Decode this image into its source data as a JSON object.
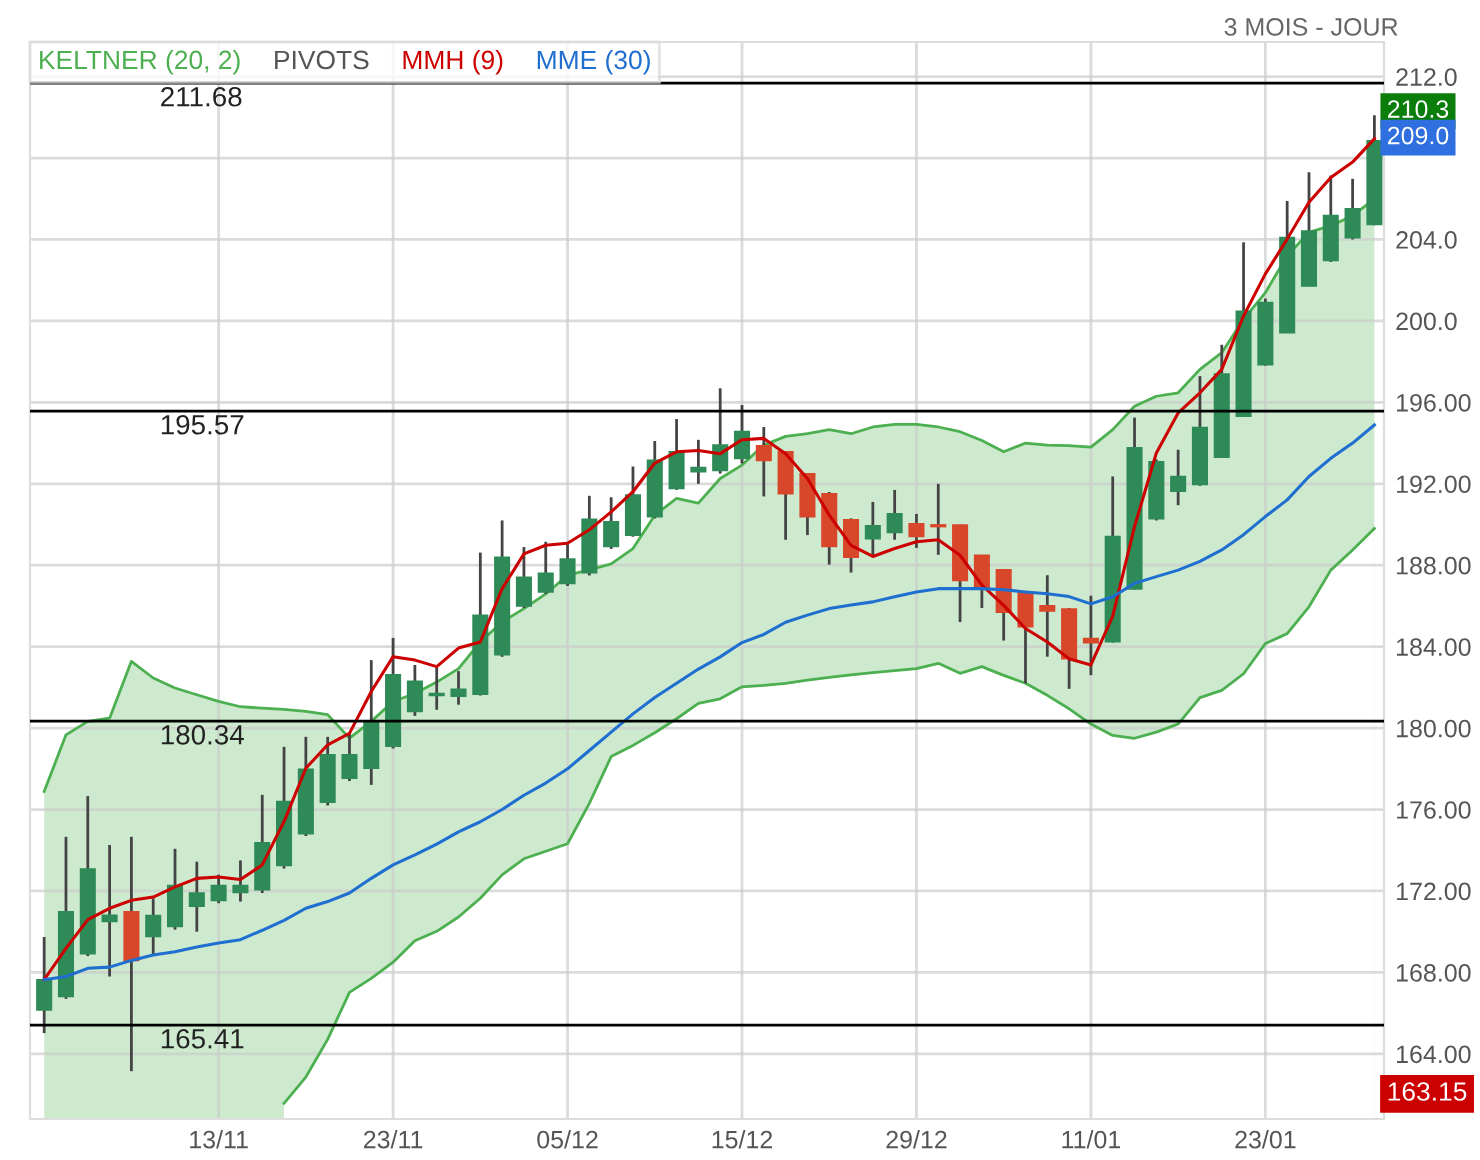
{
  "chart_data": {
    "type": "candlestick",
    "title": "3 MOIS - JOUR",
    "categories": [
      null,
      null,
      null,
      null,
      null,
      null,
      null,
      null,
      "13/11",
      null,
      null,
      null,
      null,
      null,
      null,
      null,
      "23/11",
      null,
      null,
      null,
      null,
      null,
      null,
      null,
      "05/12",
      null,
      null,
      null,
      null,
      null,
      null,
      null,
      "15/12",
      null,
      null,
      null,
      null,
      null,
      null,
      null,
      "29/12",
      null,
      null,
      null,
      null,
      null,
      null,
      null,
      "11/01",
      null,
      null,
      null,
      null,
      null,
      null,
      null,
      "23/01",
      null,
      null,
      null,
      null,
      null
    ],
    "ohlc": [
      [
        166.16,
        169.74,
        165.02,
        167.64
      ],
      [
        166.82,
        174.66,
        166.7,
        170.98
      ],
      [
        168.92,
        176.66,
        168.8,
        173.08
      ],
      [
        170.5,
        174.26,
        167.8,
        170.8
      ],
      [
        170.98,
        174.66,
        163.15,
        168.59
      ],
      [
        169.77,
        171.64,
        168.85,
        170.79
      ],
      [
        170.26,
        174.07,
        170.1,
        172.26
      ],
      [
        171.25,
        173.44,
        170.0,
        171.9
      ],
      [
        171.54,
        172.8,
        171.4,
        172.26
      ],
      [
        171.93,
        173.5,
        171.48,
        172.26
      ],
      [
        172.07,
        176.72,
        171.9,
        174.36
      ],
      [
        173.25,
        179.08,
        173.1,
        176.39
      ],
      [
        174.82,
        179.57,
        174.7,
        177.97
      ],
      [
        176.36,
        179.57,
        176.2,
        178.69
      ],
      [
        177.54,
        179.74,
        177.4,
        178.69
      ],
      [
        178.03,
        183.34,
        177.21,
        180.33
      ],
      [
        179.11,
        184.43,
        179.0,
        182.62
      ],
      [
        180.82,
        183.1,
        180.6,
        182.3
      ],
      [
        181.6,
        183.0,
        180.9,
        181.7
      ],
      [
        181.57,
        182.8,
        181.15,
        181.9
      ],
      [
        181.67,
        188.62,
        181.6,
        185.54
      ],
      [
        183.61,
        190.2,
        183.5,
        188.39
      ],
      [
        186.0,
        188.89,
        185.9,
        187.41
      ],
      [
        186.69,
        189.15,
        186.6,
        187.6
      ],
      [
        187.11,
        189.15,
        186.98,
        188.3
      ],
      [
        187.64,
        191.41,
        187.5,
        190.26
      ],
      [
        188.92,
        191.34,
        188.8,
        190.13
      ],
      [
        189.48,
        192.85,
        189.4,
        191.44
      ],
      [
        190.39,
        194.1,
        190.3,
        193.15
      ],
      [
        191.77,
        195.18,
        191.7,
        193.57
      ],
      [
        192.6,
        194.16,
        192.0,
        192.8
      ],
      [
        192.66,
        196.69,
        192.5,
        193.9
      ],
      [
        193.25,
        195.87,
        193.0,
        194.56
      ],
      [
        193.87,
        194.79,
        191.38,
        193.15
      ],
      [
        193.57,
        193.6,
        189.25,
        191.51
      ],
      [
        192.49,
        192.5,
        189.48,
        190.39
      ],
      [
        191.51,
        191.6,
        188.03,
        188.92
      ],
      [
        190.23,
        190.3,
        187.64,
        188.39
      ],
      [
        189.31,
        191.11,
        188.49,
        189.93
      ],
      [
        189.61,
        191.7,
        189.25,
        190.52
      ],
      [
        190.03,
        190.52,
        188.85,
        189.41
      ],
      [
        189.95,
        192.0,
        188.51,
        189.9
      ],
      [
        189.97,
        190.0,
        185.21,
        187.25
      ],
      [
        188.49,
        188.5,
        185.9,
        186.85
      ],
      [
        187.77,
        187.8,
        184.3,
        185.7
      ],
      [
        186.66,
        186.7,
        182.2,
        184.98
      ],
      [
        186.0,
        187.51,
        183.51,
        185.75
      ],
      [
        185.84,
        185.9,
        181.93,
        183.41
      ],
      [
        184.4,
        186.5,
        182.6,
        184.2
      ],
      [
        184.25,
        192.36,
        184.2,
        189.41
      ],
      [
        186.84,
        195.25,
        186.8,
        193.77
      ],
      [
        190.29,
        193.2,
        190.2,
        193.08
      ],
      [
        191.64,
        193.67,
        190.95,
        192.36
      ],
      [
        191.97,
        197.29,
        191.9,
        194.76
      ],
      [
        193.31,
        198.83,
        193.3,
        197.39
      ],
      [
        195.32,
        203.86,
        195.3,
        200.47
      ],
      [
        197.85,
        201.1,
        197.8,
        200.9
      ],
      [
        199.42,
        205.89,
        199.4,
        204.09
      ],
      [
        201.72,
        207.3,
        201.7,
        204.41
      ],
      [
        202.97,
        207.14,
        202.9,
        205.17
      ],
      [
        204.09,
        206.98,
        204.0,
        205.5
      ],
      [
        204.74,
        210.1,
        204.7,
        208.85
      ]
    ],
    "colors": [
      "#2e8b57",
      "#2e8b57",
      "#2e8b57",
      "#2e8b57",
      "#d9472b",
      "#2e8b57",
      "#2e8b57",
      "#2e8b57",
      "#2e8b57",
      "#2e8b57",
      "#2e8b57",
      "#2e8b57",
      "#2e8b57",
      "#2e8b57",
      "#2e8b57",
      "#2e8b57",
      "#2e8b57",
      "#2e8b57",
      "#2e8b57",
      "#2e8b57",
      "#2e8b57",
      "#2e8b57",
      "#2e8b57",
      "#2e8b57",
      "#2e8b57",
      "#2e8b57",
      "#2e8b57",
      "#2e8b57",
      "#2e8b57",
      "#2e8b57",
      "#2e8b57",
      "#2e8b57",
      "#2e8b57",
      "#d9472b",
      "#d9472b",
      "#d9472b",
      "#d9472b",
      "#d9472b",
      "#2e8b57",
      "#2e8b57",
      "#d9472b",
      "#d9472b",
      "#d9472b",
      "#d9472b",
      "#d9472b",
      "#d9472b",
      "#d9472b",
      "#d9472b",
      "#d9472b",
      "#2e8b57",
      "#2e8b57",
      "#2e8b57",
      "#2e8b57",
      "#2e8b57",
      "#2e8b57",
      "#2e8b57",
      "#2e8b57",
      "#2e8b57",
      "#2e8b57",
      "#2e8b57",
      "#2e8b57",
      "#2e8b57"
    ],
    "series": [
      {
        "name": "KELTNER (20, 2)",
        "type": "area",
        "color": "#4caf50",
        "values": [
          176.89,
          179.67,
          180.33,
          180.49,
          183.28,
          182.46,
          181.97,
          181.64,
          181.31,
          181.05,
          180.98,
          180.92,
          180.82,
          180.66,
          179.51,
          180.33,
          181.31,
          181.7,
          182.26,
          182.92,
          184.23,
          185.21,
          185.87,
          186.59,
          187.51,
          187.77,
          188.07,
          188.82,
          190.46,
          191.28,
          191.05,
          192.26,
          192.92,
          193.9,
          194.33,
          194.46,
          194.66,
          194.46,
          194.79,
          194.92,
          194.92,
          194.79,
          194.56,
          194.13,
          193.57,
          194.0,
          193.9,
          193.87,
          193.8,
          194.66,
          195.81,
          196.3,
          196.47,
          197.62,
          198.44,
          200.08,
          201.39,
          203.2,
          204.35,
          204.68,
          205.17,
          205.99
        ]
      },
      {
        "type": "area",
        "color": "#4caf50",
        "values": [
          null,
          null,
          null,
          null,
          null,
          null,
          null,
          null,
          null,
          null,
          null,
          161.57,
          162.86,
          164.71,
          167.02,
          167.71,
          168.5,
          169.56,
          170.02,
          170.72,
          171.64,
          172.79,
          173.58,
          173.95,
          174.32,
          176.3,
          178.6,
          179.15,
          179.77,
          180.46,
          181.21,
          181.44,
          182.03,
          182.1,
          182.2,
          182.36,
          182.49,
          182.62,
          182.72,
          182.82,
          182.92,
          183.18,
          182.69,
          183.02,
          182.59,
          182.2,
          181.61,
          180.95,
          180.2,
          179.64,
          179.5,
          179.8,
          180.2,
          181.5,
          181.85,
          182.67,
          184.15,
          184.64,
          185.96,
          187.76,
          188.75,
          189.8
        ]
      },
      {
        "name": "MMH (9)",
        "type": "line",
        "color": "#cc0000",
        "values": [
          167.64,
          169.18,
          170.59,
          171.15,
          171.54,
          171.7,
          172.2,
          172.62,
          172.69,
          172.56,
          173.28,
          175.41,
          178.03,
          179.18,
          179.74,
          181.8,
          183.51,
          183.34,
          183.02,
          183.93,
          184.23,
          186.85,
          188.56,
          188.98,
          189.08,
          189.74,
          190.62,
          191.61,
          193.02,
          193.57,
          193.64,
          193.48,
          194.16,
          194.23,
          193.48,
          192.26,
          190.46,
          188.98,
          188.43,
          188.82,
          189.15,
          189.25,
          188.49,
          187.02,
          186.03,
          184.89,
          184.23,
          183.41,
          183.1,
          185.5,
          189.9,
          193.51,
          195.48,
          196.47,
          197.62,
          200.24,
          202.31,
          204.02,
          205.83,
          207.04,
          207.8,
          208.95
        ]
      },
      {
        "name": "MME (30)",
        "type": "line",
        "color": "#1f6fd1",
        "values": [
          167.64,
          167.8,
          168.2,
          168.26,
          168.59,
          168.85,
          169.02,
          169.25,
          169.44,
          169.61,
          170.07,
          170.56,
          171.15,
          171.48,
          171.9,
          172.62,
          173.28,
          173.77,
          174.3,
          174.9,
          175.4,
          176.0,
          176.7,
          177.3,
          178.0,
          178.9,
          179.8,
          180.7,
          181.5,
          182.2,
          182.9,
          183.5,
          184.2,
          184.6,
          185.2,
          185.55,
          185.87,
          186.05,
          186.2,
          186.45,
          186.69,
          186.85,
          186.85,
          186.85,
          186.8,
          186.69,
          186.6,
          186.46,
          186.1,
          186.45,
          187.11,
          187.44,
          187.76,
          188.19,
          188.75,
          189.5,
          190.39,
          191.21,
          192.36,
          193.25,
          194.0,
          194.89
        ]
      }
    ],
    "ref_lines": [
      {
        "axis": "y",
        "value": 211.68,
        "label": "211.68",
        "color": "#000000"
      },
      {
        "axis": "y",
        "value": 195.57,
        "label": "195.57",
        "color": "#000000"
      },
      {
        "axis": "y",
        "value": 180.34,
        "label": "180.34",
        "color": "#000000"
      },
      {
        "axis": "y",
        "value": 165.41,
        "label": "165.41",
        "color": "#000000"
      }
    ],
    "annotations": [
      "PIVOTS",
      {
        "text": "210.3",
        "y": 210.3
      },
      {
        "text": "209.0",
        "y": 209.0
      },
      "163.15"
    ],
    "ylim": [
      160.8,
      213.7
    ],
    "yticks": [
      {
        "value": 212,
        "label": "212.0"
      },
      {
        "value": 208,
        "label": null
      },
      {
        "value": 204,
        "label": "204.0"
      },
      {
        "value": 200,
        "label": "200.0"
      },
      {
        "value": 196,
        "label": "196.00"
      },
      {
        "value": 192,
        "label": "192.00"
      },
      {
        "value": 188,
        "label": "188.00"
      },
      {
        "value": 184,
        "label": "184.00"
      },
      {
        "value": 180,
        "label": "180.00"
      },
      {
        "value": 176,
        "label": "176.00"
      },
      {
        "value": 172,
        "label": "172.00"
      },
      {
        "value": 168,
        "label": "168.00"
      },
      {
        "value": 164,
        "label": "164.00"
      }
    ],
    "grid": true,
    "legend": "top left"
  }
}
